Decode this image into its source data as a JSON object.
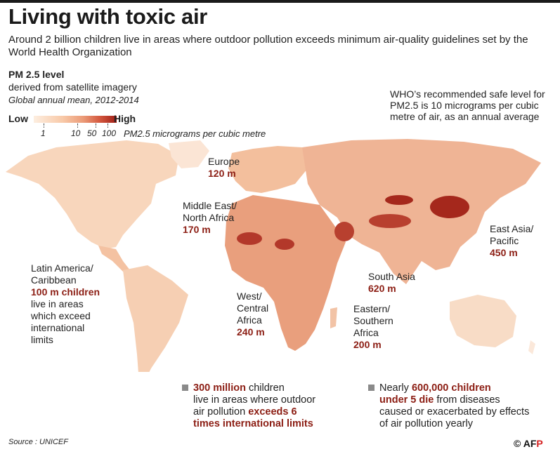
{
  "title": "Living with toxic air",
  "subtitle": "Around 2 billion children live in areas where outdoor pollution exceeds minimum air-quality guidelines set by the World Health Organization",
  "legend": {
    "title": "PM 2.5 level",
    "subtitle": "derived from satellite imagery",
    "period": "Global annual mean, 2012-2014",
    "low_label": "Low",
    "high_label": "High",
    "scale_ticks": [
      "1",
      "10",
      "50",
      "100"
    ],
    "units": "PM2.5 micrograms per cubic metre",
    "colors": [
      "#fdeee0",
      "#f8c9a8",
      "#eb9a77",
      "#d3573e",
      "#a01e16"
    ]
  },
  "who_note": "WHO’s recommended safe level for PM2.5 is 10 micrograms per cubic metre of air, as an annual average",
  "regions": {
    "europe": {
      "name": "Europe",
      "value": "120 m"
    },
    "mena": {
      "name_1": "Middle East/",
      "name_2": "North Africa",
      "value": "170 m"
    },
    "latam": {
      "name_1": "Latin America/",
      "name_2": "Caribbean",
      "value": "100 m children",
      "note_1": "live in areas",
      "note_2": "which exceed",
      "note_3": "international",
      "note_4": "limits"
    },
    "west_africa": {
      "name_1": "West/",
      "name_2": "Central",
      "name_3": "Africa",
      "value": "240 m"
    },
    "east_africa": {
      "name_1": "Eastern/",
      "name_2": "Southern",
      "name_3": "Africa",
      "value": "200 m"
    },
    "south_asia": {
      "name": "South Asia",
      "value": "620 m"
    },
    "east_asia": {
      "name_1": "East Asia/",
      "name_2": "Pacific",
      "value": "450 m"
    }
  },
  "stats": {
    "s1": {
      "hi_1": "300 million",
      "text_1": " children",
      "line_2": "live in areas where outdoor",
      "line_3": "air pollution ",
      "hi_2": "exceeds 6",
      "hi_3": "times international limits"
    },
    "s2": {
      "text_1": "Nearly ",
      "hi_1": "600,000 children",
      "hi_2": "under 5 die",
      "text_2": " from diseases",
      "line_3": "caused or exacerbated by effects",
      "line_4": "of air pollution yearly"
    }
  },
  "source": "Source : UNICEF",
  "credit": {
    "copyright": "©",
    "afp_1": "AF",
    "afp_2": "P"
  }
}
